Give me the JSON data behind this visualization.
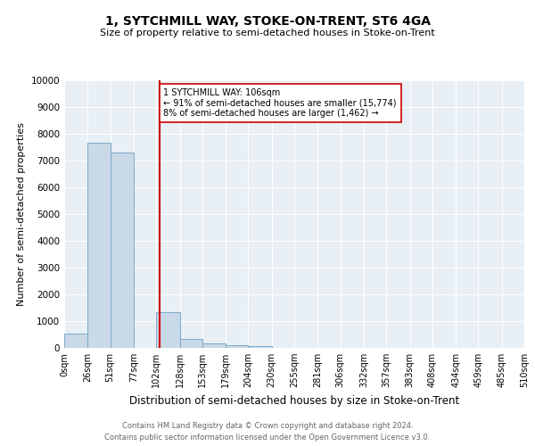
{
  "title": "1, SYTCHMILL WAY, STOKE-ON-TRENT, ST6 4GA",
  "subtitle": "Size of property relative to semi-detached houses in Stoke-on-Trent",
  "xlabel": "Distribution of semi-detached houses by size in Stoke-on-Trent",
  "ylabel": "Number of semi-detached properties",
  "footer": "Contains HM Land Registry data © Crown copyright and database right 2024.\nContains public sector information licensed under the Open Government Licence v3.0.",
  "bin_labels": [
    "0sqm",
    "26sqm",
    "51sqm",
    "77sqm",
    "102sqm",
    "128sqm",
    "153sqm",
    "179sqm",
    "204sqm",
    "230sqm",
    "255sqm",
    "281sqm",
    "306sqm",
    "332sqm",
    "357sqm",
    "383sqm",
    "408sqm",
    "434sqm",
    "459sqm",
    "485sqm",
    "510sqm"
  ],
  "bar_values": [
    550,
    7650,
    7300,
    0,
    1350,
    330,
    160,
    100,
    75,
    0,
    0,
    0,
    0,
    0,
    0,
    0,
    0,
    0,
    0,
    0
  ],
  "bar_color": "#c9d9e8",
  "bar_edge_color": "#7aaac8",
  "vline_color": "#cc0000",
  "annotation_text": "1 SYTCHMILL WAY: 106sqm\n← 91% of semi-detached houses are smaller (15,774)\n8% of semi-detached houses are larger (1,462) →",
  "annotation_box_color": "#ffffff",
  "annotation_box_edge": "#cc0000",
  "ylim": [
    0,
    10000
  ],
  "yticks": [
    0,
    1000,
    2000,
    3000,
    4000,
    5000,
    6000,
    7000,
    8000,
    9000,
    10000
  ],
  "property_sqm": 106,
  "bin_starts": [
    0,
    26,
    51,
    77,
    102,
    128,
    153,
    179,
    204,
    230,
    255,
    281,
    306,
    332,
    357,
    383,
    408,
    434,
    459,
    485
  ],
  "xlim_max": 510,
  "bg_color": "#e8eff5",
  "title_fontsize": 10,
  "subtitle_fontsize": 8,
  "ylabel_fontsize": 8,
  "xlabel_fontsize": 8.5,
  "footer_fontsize": 6,
  "tick_fontsize": 7,
  "ytick_fontsize": 7.5
}
